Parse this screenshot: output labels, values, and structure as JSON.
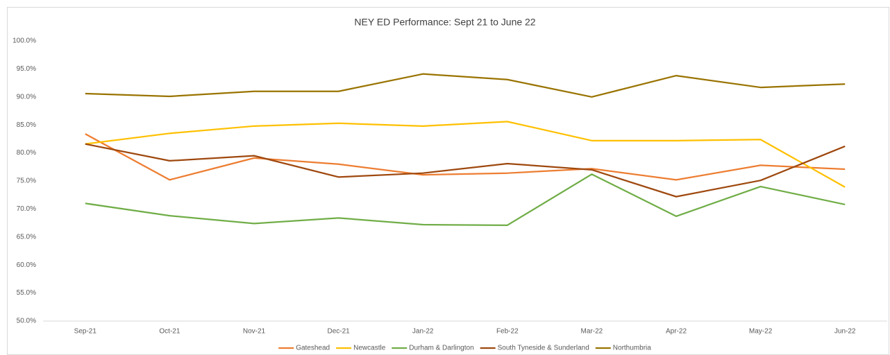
{
  "chart_data": {
    "type": "line",
    "title": "NEY ED Performance: Sept 21 to June 22",
    "categories": [
      "Sep-21",
      "Oct-21",
      "Nov-21",
      "Dec-21",
      "Jan-22",
      "Feb-22",
      "Mar-22",
      "Apr-22",
      "May-22",
      "Jun-22"
    ],
    "series": [
      {
        "name": "Gateshead",
        "color": "#ed7d31",
        "values": [
          83.4,
          75.2,
          79.1,
          78.0,
          76.1,
          76.4,
          77.2,
          75.2,
          77.8,
          77.1
        ]
      },
      {
        "name": "Newcastle",
        "color": "#ffc000",
        "values": [
          81.6,
          83.5,
          84.8,
          85.3,
          84.8,
          85.6,
          82.2,
          82.2,
          82.4,
          73.9
        ]
      },
      {
        "name": "Durham & Darlington",
        "color": "#70ad47",
        "values": [
          71.0,
          68.8,
          67.4,
          68.4,
          67.2,
          67.1,
          76.2,
          68.7,
          74.0,
          70.8
        ]
      },
      {
        "name": "South Tyneside & Sunderland",
        "color": "#9e480e",
        "values": [
          81.6,
          78.6,
          79.5,
          75.7,
          76.4,
          78.1,
          77.0,
          72.2,
          75.1,
          81.2
        ]
      },
      {
        "name": "Northumbria",
        "color": "#997300",
        "values": [
          90.6,
          90.1,
          91.0,
          91.0,
          94.1,
          93.1,
          90.0,
          93.8,
          91.7,
          92.3
        ]
      }
    ],
    "ylim": [
      50,
      100
    ],
    "yticks": [
      {
        "value": 50,
        "label": "50.0%"
      },
      {
        "value": 55,
        "label": "55.0%"
      },
      {
        "value": 60,
        "label": "60.0%"
      },
      {
        "value": 65,
        "label": "65.0%"
      },
      {
        "value": 70,
        "label": "70.0%"
      },
      {
        "value": 75,
        "label": "75.0%"
      },
      {
        "value": 80,
        "label": "80.0%"
      },
      {
        "value": 85,
        "label": "85.0%"
      },
      {
        "value": 90,
        "label": "90.0%"
      },
      {
        "value": 95,
        "label": "95.0%"
      },
      {
        "value": 100,
        "label": "100.0%"
      }
    ],
    "grid": false,
    "legend": "bottom"
  }
}
